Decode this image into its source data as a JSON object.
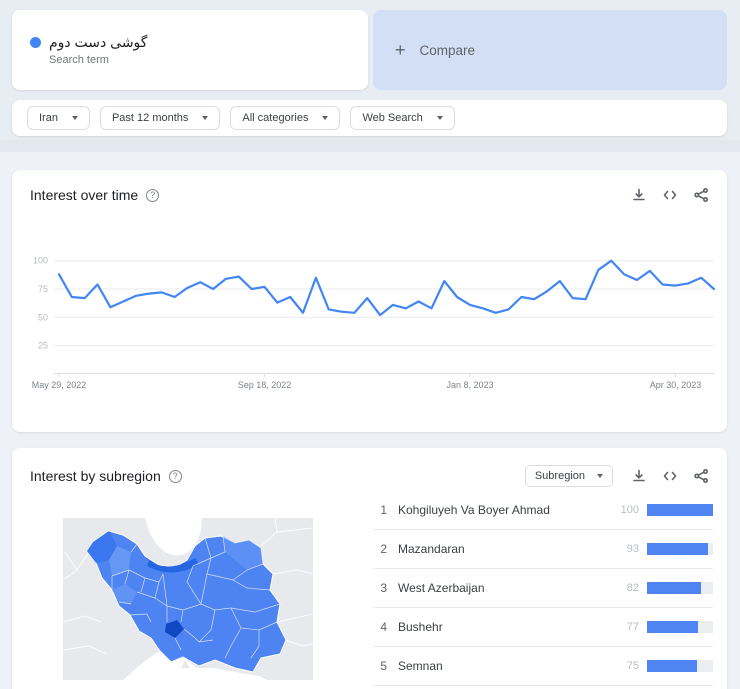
{
  "colors": {
    "accent": "#4285f4",
    "line": "#4285f4",
    "bar-fill": "#4e85f3",
    "bar-track": "#ebedf0",
    "compare-bg": "#d3dff4",
    "page-top": "#e8ecf3",
    "page-band": "#e2e7f0",
    "page-rest": "#eef1f8",
    "map-bg": "#e7e9ec",
    "map-p1": "#4d84f2",
    "map-p2": "#6a9af5",
    "map-p3": "#3a76ee",
    "map-dark": "#2766e0",
    "map-darkest": "#1247c4",
    "icon": "#5f6368",
    "grid": "#e9ebee",
    "axis": "#dadce0"
  },
  "icons": {
    "help": "?"
  },
  "search_card": {
    "term": "گوشی دست دوم",
    "type_label": "Search term"
  },
  "compare_card": {
    "plus": "+",
    "label": "Compare"
  },
  "filters": [
    {
      "label": "Iran"
    },
    {
      "label": "Past 12 months"
    },
    {
      "label": "All categories"
    },
    {
      "label": "Web Search"
    }
  ],
  "interest_over_time": {
    "title": "Interest over time"
  },
  "chart_data": {
    "type": "line",
    "title": "Interest over time",
    "x_start": "May 29, 2022",
    "x_interval": "1 week",
    "values": [
      88,
      68,
      67,
      79,
      59,
      64,
      69,
      71,
      72,
      68,
      76,
      81,
      75,
      84,
      86,
      75,
      77,
      63,
      68,
      54,
      85,
      57,
      55,
      54,
      67,
      52,
      61,
      58,
      64,
      58,
      82,
      68,
      61,
      58,
      54,
      57,
      68,
      66,
      73,
      82,
      67,
      66,
      92,
      100,
      88,
      83,
      91,
      79,
      78,
      80,
      85,
      75
    ],
    "ylim": [
      0,
      100
    ],
    "yticks": [
      25,
      50,
      75,
      100
    ],
    "xticks": [
      {
        "index": 0,
        "label": "May 29, 2022"
      },
      {
        "index": 16,
        "label": "Sep 18, 2022"
      },
      {
        "index": 32,
        "label": "Jan 8, 2023"
      },
      {
        "index": 48,
        "label": "Apr 30, 2023"
      }
    ],
    "grid": true,
    "legend": false,
    "line_color": "#4285f4"
  },
  "interest_by_subregion": {
    "title": "Interest by subregion",
    "dropdown_label": "Subregion",
    "rows": [
      {
        "rank": "1",
        "name": "Kohgiluyeh Va Boyer Ahmad",
        "value": 100
      },
      {
        "rank": "2",
        "name": "Mazandaran",
        "value": 93
      },
      {
        "rank": "3",
        "name": "West Azerbaijan",
        "value": 82
      },
      {
        "rank": "4",
        "name": "Bushehr",
        "value": 77
      },
      {
        "rank": "5",
        "name": "Semnan",
        "value": 75
      }
    ]
  }
}
